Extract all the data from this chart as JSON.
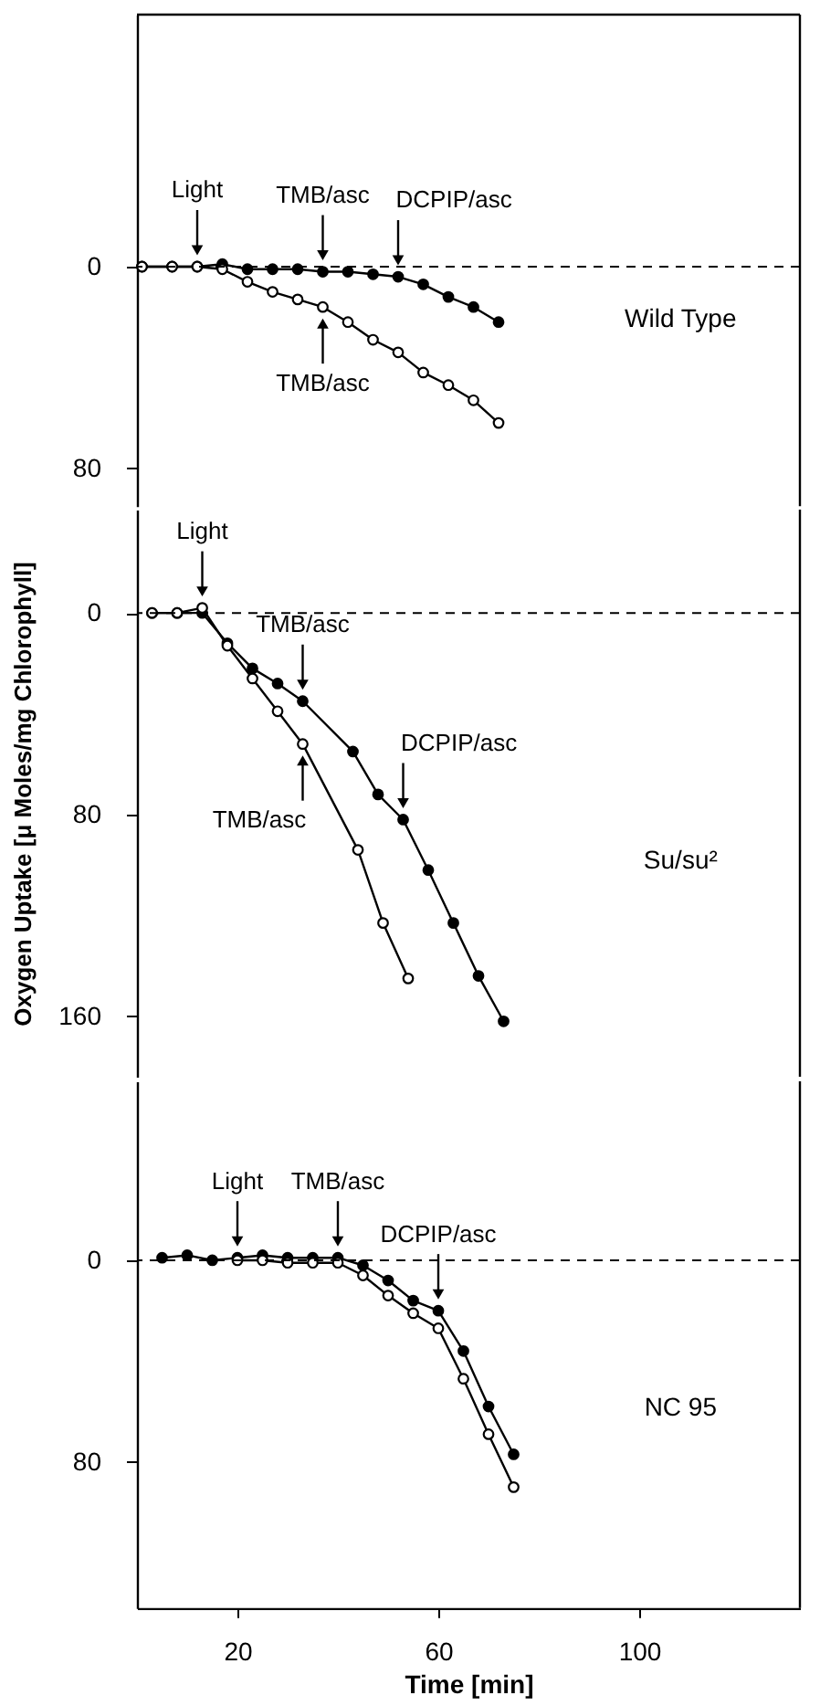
{
  "chart_data": [
    {
      "type": "line",
      "xlim": [
        0,
        132
      ],
      "xticks": [
        20,
        60,
        100
      ],
      "ylim": [
        95,
        -100
      ],
      "yticks": [
        0,
        80
      ],
      "tick_labels": "y",
      "marker": "circle",
      "line_style": "solid",
      "grid": false,
      "series": [
        {
          "color": "#000000",
          "x": [
            1,
            7,
            12,
            17,
            22,
            27,
            32,
            37,
            42,
            47,
            52,
            57,
            62,
            67,
            72
          ],
          "values": [
            0,
            0,
            0,
            -1,
            1,
            1,
            1,
            2,
            2,
            3,
            4,
            7,
            12,
            16,
            22
          ]
        },
        {
          "color": "#000000",
          "x": [
            1,
            7,
            12,
            17,
            22,
            27,
            32,
            37,
            42,
            47,
            52,
            57,
            62,
            67,
            72
          ],
          "values": [
            0,
            0,
            0,
            1,
            6,
            10,
            13,
            16,
            22,
            29,
            34,
            42,
            47,
            53,
            62
          ]
        }
      ],
      "ref_lines": [
        {
          "axis": "y",
          "value": 0,
          "line_style": "dashed"
        }
      ],
      "annotations": [
        {
          "text": "Light",
          "x": 12,
          "y": 0
        },
        {
          "text": "TMB/asc",
          "x": 37,
          "y": 2
        },
        {
          "text": "DCPIP/asc",
          "x": 52,
          "y": 4
        },
        {
          "text": "TMB/asc",
          "x": 37,
          "y": 16
        },
        "Wild Type"
      ]
    },
    {
      "type": "line",
      "xlim": [
        0,
        132
      ],
      "xticks": [
        20,
        60,
        100
      ],
      "ylim": [
        184,
        -41
      ],
      "yticks": [
        0,
        80,
        160
      ],
      "tick_labels": "y",
      "marker": "circle",
      "line_style": "solid",
      "grid": false,
      "ylabel": "Oxygen Uptake [μ Moles/mg Chlorophyll]",
      "series": [
        {
          "color": "#000000",
          "x": [
            3,
            8,
            13,
            18,
            23,
            28,
            33,
            43,
            48,
            53,
            58,
            63,
            68,
            73
          ],
          "values": [
            0,
            0,
            0,
            12,
            22,
            28,
            35,
            55,
            72,
            82,
            102,
            123,
            144,
            162
          ]
        },
        {
          "color": "#000000",
          "x": [
            3,
            8,
            13,
            18,
            23,
            28,
            33,
            44,
            49,
            54
          ],
          "values": [
            0,
            0,
            -2,
            13,
            26,
            39,
            52,
            94,
            123,
            145
          ]
        }
      ],
      "ref_lines": [
        {
          "axis": "y",
          "value": 0,
          "line_style": "dashed"
        }
      ],
      "annotations": [
        {
          "text": "Light",
          "x": 13,
          "y": -2
        },
        {
          "text": "TMB/asc",
          "x": 33,
          "y": 35
        },
        {
          "text": "DCPIP/asc",
          "x": 53,
          "y": 82
        },
        {
          "text": "TMB/asc",
          "x": 33,
          "y": 52
        },
        "Su/su²"
      ]
    },
    {
      "type": "line",
      "xlim": [
        0,
        132
      ],
      "xticks": [
        20,
        60,
        100
      ],
      "ylim": [
        138,
        -71
      ],
      "yticks": [
        0,
        80
      ],
      "marker": "circle",
      "line_style": "solid",
      "grid": false,
      "xlabel": "Time [min]",
      "series": [
        {
          "color": "#000000",
          "x": [
            5,
            10,
            15,
            20,
            25,
            30,
            35,
            40,
            45,
            50,
            55,
            60,
            65,
            70,
            75
          ],
          "values": [
            -1,
            -2,
            0,
            -1,
            -2,
            -1,
            -1,
            -1,
            2,
            8,
            16,
            20,
            36,
            58,
            77
          ]
        },
        {
          "color": "#000000",
          "x": [
            20,
            25,
            30,
            35,
            40,
            45,
            50,
            55,
            60,
            65,
            70,
            75
          ],
          "values": [
            0,
            0,
            1,
            1,
            1,
            6,
            14,
            21,
            27,
            47,
            69,
            90
          ]
        }
      ],
      "ref_lines": [
        {
          "axis": "y",
          "value": 0,
          "line_style": "dashed"
        }
      ],
      "annotations": [
        {
          "text": "Light",
          "x": 20,
          "y": -1
        },
        {
          "text": "TMB/asc",
          "x": 40,
          "y": -1
        },
        {
          "text": "DCPIP/asc",
          "x": 60,
          "y": 20
        },
        "NC 95"
      ]
    }
  ]
}
